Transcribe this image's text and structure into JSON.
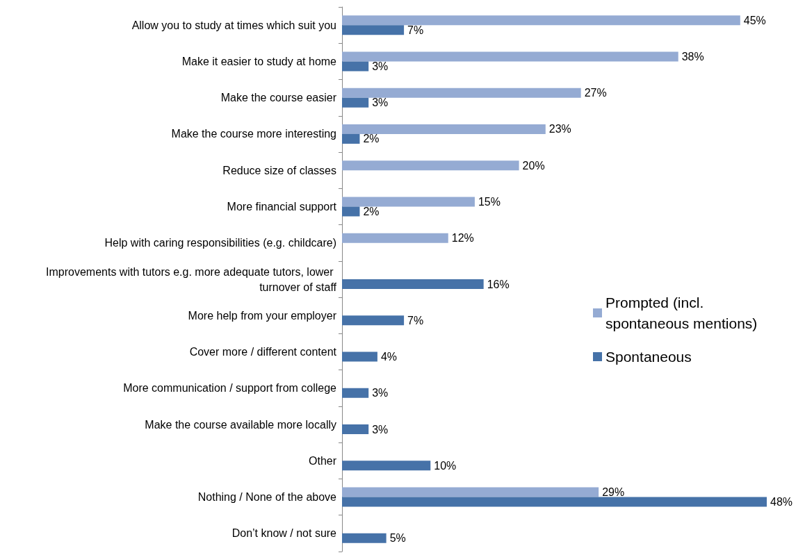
{
  "chart_data": {
    "type": "bar",
    "orientation": "horizontal",
    "legend": "right",
    "categories": [
      "Allow you to study at times which suit you",
      "Make it easier to study at home",
      "Make the course easier",
      "Make the course more interesting",
      "Reduce size of classes",
      "More financial support",
      "Help with caring responsibilities (e.g. childcare)",
      "Improvements with tutors e.g. more adequate tutors, lower turnover of staff",
      "More help from your employer",
      "Cover more / different content",
      "More communication / support from college",
      "Make the course available more locally",
      "Other",
      "Nothing / None of the above",
      "Don’t know / not sure"
    ],
    "series": [
      {
        "name": "Prompted (incl. spontaneous mentions)",
        "color": "#95abd3",
        "values": [
          45,
          38,
          27,
          23,
          20,
          15,
          12,
          null,
          null,
          null,
          null,
          null,
          null,
          29,
          null
        ],
        "value_labels": [
          "45%",
          "38%",
          "27%",
          "23%",
          "20%",
          "15%",
          "12%",
          null,
          null,
          null,
          null,
          null,
          null,
          "29%",
          null
        ]
      },
      {
        "name": "Spontaneous",
        "color": "#4672a8",
        "values": [
          7,
          3,
          3,
          2,
          null,
          2,
          null,
          16,
          7,
          4,
          3,
          3,
          10,
          48,
          5
        ],
        "value_labels": [
          "7%",
          "3%",
          "3%",
          "2%",
          null,
          "2%",
          null,
          "16%",
          "7%",
          "4%",
          "3%",
          "3%",
          "10%",
          "48%",
          "5%"
        ]
      }
    ]
  }
}
